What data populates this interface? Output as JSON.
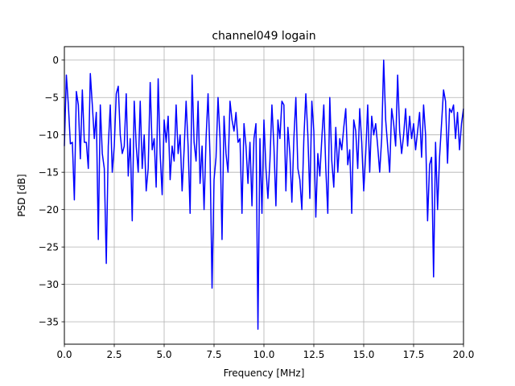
{
  "chart_data": {
    "type": "line",
    "title": "channel049 logain",
    "xlabel": "Frequency [MHz]",
    "ylabel": "PSD [dB]",
    "xlim": [
      0,
      20
    ],
    "ylim": [
      -38,
      1.8
    ],
    "xticks": [
      0,
      2.5,
      5,
      7.5,
      10,
      12.5,
      15,
      17.5,
      20
    ],
    "xtick_labels": [
      "0.0",
      "2.5",
      "5.0",
      "7.5",
      "10.0",
      "12.5",
      "15.0",
      "17.5",
      "20.0"
    ],
    "yticks": [
      0,
      -5,
      -10,
      -15,
      -20,
      -25,
      -30,
      -35
    ],
    "ytick_labels": [
      "0",
      "−5",
      "−10",
      "−15",
      "−20",
      "−25",
      "−30",
      "−35"
    ],
    "grid": true,
    "line_color": "#0000ff",
    "series": [
      {
        "x": [
          0.0,
          0.1,
          0.2,
          0.3,
          0.4,
          0.5,
          0.6,
          0.7,
          0.8,
          0.9,
          1.0,
          1.1,
          1.2,
          1.3,
          1.4,
          1.5,
          1.6,
          1.7,
          1.8,
          1.9,
          2.0,
          2.1,
          2.2,
          2.3,
          2.4,
          2.5,
          2.6,
          2.7,
          2.8,
          2.9,
          3.0,
          3.1,
          3.2,
          3.3,
          3.4,
          3.5,
          3.6,
          3.7,
          3.8,
          3.9,
          4.0,
          4.1,
          4.2,
          4.3,
          4.4,
          4.5,
          4.6,
          4.7,
          4.8,
          4.9,
          5.0,
          5.1,
          5.2,
          5.3,
          5.4,
          5.5,
          5.6,
          5.7,
          5.8,
          5.9,
          6.0,
          6.1,
          6.2,
          6.3,
          6.4,
          6.5,
          6.6,
          6.7,
          6.8,
          6.9,
          7.0,
          7.1,
          7.2,
          7.3,
          7.4,
          7.5,
          7.6,
          7.7,
          7.8,
          7.9,
          8.0,
          8.1,
          8.2,
          8.3,
          8.4,
          8.5,
          8.6,
          8.7,
          8.8,
          8.9,
          9.0,
          9.1,
          9.2,
          9.3,
          9.4,
          9.5,
          9.6,
          9.7,
          9.8,
          9.9,
          10.0,
          10.1,
          10.2,
          10.3,
          10.4,
          10.5,
          10.6,
          10.7,
          10.8,
          10.9,
          11.0,
          11.1,
          11.2,
          11.3,
          11.4,
          11.5,
          11.6,
          11.7,
          11.8,
          11.9,
          12.0,
          12.1,
          12.2,
          12.3,
          12.4,
          12.5,
          12.6,
          12.7,
          12.8,
          12.9,
          13.0,
          13.1,
          13.2,
          13.3,
          13.4,
          13.5,
          13.6,
          13.7,
          13.8,
          13.9,
          14.0,
          14.1,
          14.2,
          14.3,
          14.4,
          14.5,
          14.6,
          14.7,
          14.8,
          14.9,
          15.0,
          15.1,
          15.2,
          15.3,
          15.4,
          15.5,
          15.6,
          15.7,
          15.8,
          15.9,
          16.0,
          16.1,
          16.2,
          16.3,
          16.4,
          16.5,
          16.6,
          16.7,
          16.8,
          16.9,
          17.0,
          17.1,
          17.2,
          17.3,
          17.4,
          17.5,
          17.6,
          17.7,
          17.8,
          17.9,
          18.0,
          18.1,
          18.2,
          18.3,
          18.4,
          18.5,
          18.6,
          18.7,
          18.8,
          18.9,
          19.0,
          19.1,
          19.2,
          19.3,
          19.4,
          19.5,
          19.6,
          19.7,
          19.8,
          19.9,
          20.0
        ],
        "y": [
          -11.5,
          -2.0,
          -6.0,
          -11.2,
          -11.0,
          -18.7,
          -4.2,
          -6.0,
          -13.2,
          -4.0,
          -11.0,
          -11.0,
          -14.5,
          -1.8,
          -6.0,
          -10.5,
          -7.0,
          -24.0,
          -6.0,
          -12.5,
          -14.5,
          -27.2,
          -11.5,
          -6.0,
          -15.0,
          -11.5,
          -4.5,
          -3.5,
          -10.0,
          -12.5,
          -11.5,
          -4.5,
          -15.5,
          -10.5,
          -21.5,
          -5.5,
          -11.5,
          -15.0,
          -5.5,
          -14.5,
          -10.0,
          -17.5,
          -14.5,
          -3.0,
          -12.0,
          -10.5,
          -17.0,
          -2.5,
          -12.5,
          -18.0,
          -8.0,
          -11.0,
          -7.5,
          -16.0,
          -11.5,
          -13.5,
          -6.0,
          -12.5,
          -10.0,
          -17.5,
          -12.0,
          -5.5,
          -11.5,
          -20.5,
          -2.0,
          -11.0,
          -13.5,
          -5.5,
          -16.5,
          -11.5,
          -20.0,
          -10.5,
          -4.5,
          -13.0,
          -30.5,
          -16.0,
          -13.0,
          -5.0,
          -10.5,
          -24.0,
          -7.5,
          -12.5,
          -15.0,
          -5.5,
          -8.0,
          -9.5,
          -7.0,
          -11.0,
          -10.5,
          -20.5,
          -8.5,
          -11.5,
          -16.5,
          -11.0,
          -19.5,
          -10.5,
          -8.5,
          -36.0,
          -10.5,
          -20.5,
          -8.0,
          -14.5,
          -18.5,
          -13.5,
          -6.0,
          -11.5,
          -19.5,
          -8.0,
          -10.5,
          -5.5,
          -6.0,
          -17.5,
          -9.0,
          -12.5,
          -19.0,
          -10.5,
          -5.0,
          -14.5,
          -16.0,
          -20.0,
          -10.5,
          -4.5,
          -10.0,
          -18.5,
          -5.5,
          -9.5,
          -21.0,
          -12.5,
          -15.5,
          -10.5,
          -6.0,
          -14.5,
          -20.5,
          -5.0,
          -13.5,
          -17.0,
          -9.0,
          -15.0,
          -10.5,
          -12.0,
          -9.0,
          -6.5,
          -14.0,
          -12.0,
          -20.5,
          -8.0,
          -9.5,
          -14.5,
          -6.5,
          -11.0,
          -17.5,
          -12.5,
          -6.0,
          -15.0,
          -7.5,
          -10.0,
          -8.5,
          -11.5,
          -15.0,
          -10.5,
          0.0,
          -8.0,
          -11.5,
          -15.0,
          -6.5,
          -8.5,
          -11.5,
          -2.0,
          -9.5,
          -12.5,
          -10.0,
          -6.5,
          -11.5,
          -7.5,
          -10.5,
          -8.5,
          -12.0,
          -9.5,
          -7.0,
          -13.0,
          -6.0,
          -10.0,
          -21.5,
          -14.0,
          -13.0,
          -29.0,
          -11.0,
          -20.0,
          -13.0,
          -8.5,
          -4.0,
          -5.5,
          -13.8,
          -6.5,
          -7.0,
          -6.0,
          -10.5,
          -7.0,
          -12.0,
          -8.5,
          -6.5
        ]
      }
    ]
  }
}
